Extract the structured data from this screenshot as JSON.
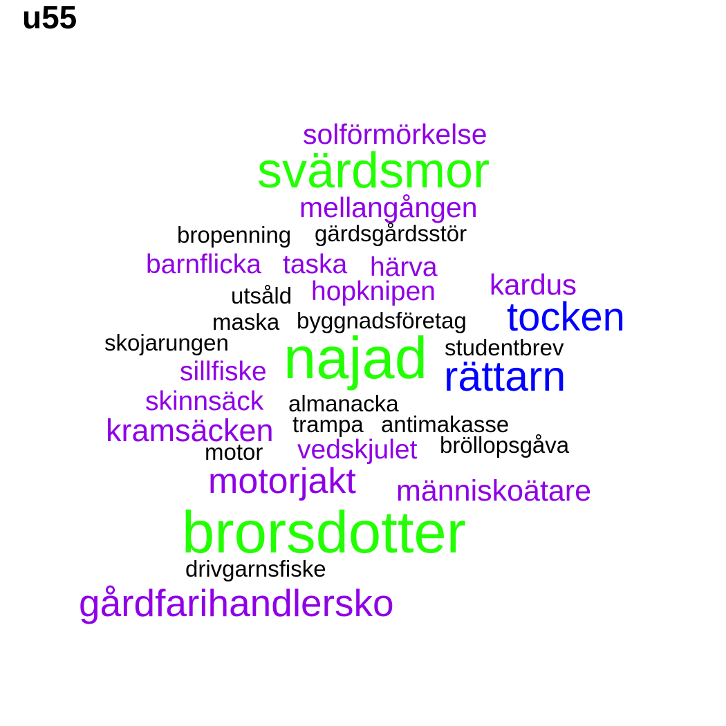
{
  "panel_label": "u55",
  "palette": {
    "green": "#22ff00",
    "blue": "#0000ff",
    "purple": "#8f00e6",
    "black": "#000000"
  },
  "words": [
    {
      "text": "solförmörkelse",
      "color": "purple"
    },
    {
      "text": "svärdsmor",
      "color": "green"
    },
    {
      "text": "mellangången",
      "color": "purple"
    },
    {
      "text": "bropenning",
      "color": "black"
    },
    {
      "text": "gärdsgårdsstör",
      "color": "black"
    },
    {
      "text": "barnflicka",
      "color": "purple"
    },
    {
      "text": "taska",
      "color": "purple"
    },
    {
      "text": "härva",
      "color": "purple"
    },
    {
      "text": "kardus",
      "color": "purple"
    },
    {
      "text": "utsåld",
      "color": "black"
    },
    {
      "text": "hopknipen",
      "color": "purple"
    },
    {
      "text": "tocken",
      "color": "blue"
    },
    {
      "text": "maska",
      "color": "black"
    },
    {
      "text": "byggnadsföretag",
      "color": "black"
    },
    {
      "text": "skojarungen",
      "color": "black"
    },
    {
      "text": "najad",
      "color": "green"
    },
    {
      "text": "studentbrev",
      "color": "black"
    },
    {
      "text": "sillfiske",
      "color": "purple"
    },
    {
      "text": "rättarn",
      "color": "blue"
    },
    {
      "text": "skinnsäck",
      "color": "purple"
    },
    {
      "text": "almanacka",
      "color": "black"
    },
    {
      "text": "kramsäcken",
      "color": "purple"
    },
    {
      "text": "trampa",
      "color": "black"
    },
    {
      "text": "antimakasse",
      "color": "black"
    },
    {
      "text": "vedskjulet",
      "color": "purple"
    },
    {
      "text": "motor",
      "color": "black"
    },
    {
      "text": "bröllopsgåva",
      "color": "black"
    },
    {
      "text": "motorjakt",
      "color": "purple"
    },
    {
      "text": "människoätare",
      "color": "purple"
    },
    {
      "text": "brorsdotter",
      "color": "green"
    },
    {
      "text": "drivgarnsfiske",
      "color": "black"
    },
    {
      "text": "gårdfarihandlersko",
      "color": "purple"
    }
  ]
}
